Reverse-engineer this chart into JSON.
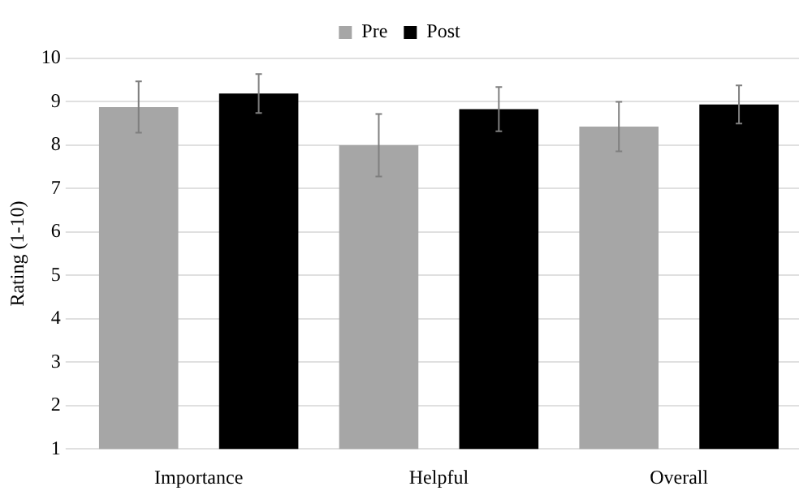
{
  "chart_data": {
    "type": "bar",
    "ylabel": "Rating (1-10)",
    "categories": [
      "Importance",
      "Helpful",
      "Overall"
    ],
    "series": [
      {
        "name": "Pre",
        "color": "#a6a6a6",
        "values": [
          8.88,
          8.0,
          8.43
        ],
        "errors": [
          0.59,
          0.72,
          0.57
        ]
      },
      {
        "name": "Post",
        "color": "#000000",
        "values": [
          9.19,
          8.83,
          8.94
        ],
        "errors": [
          0.45,
          0.51,
          0.44
        ]
      }
    ],
    "ylim": [
      1,
      10
    ],
    "yticks": [
      1,
      2,
      3,
      4,
      5,
      6,
      7,
      8,
      9,
      10
    ],
    "grid": "y",
    "legend": "top"
  }
}
